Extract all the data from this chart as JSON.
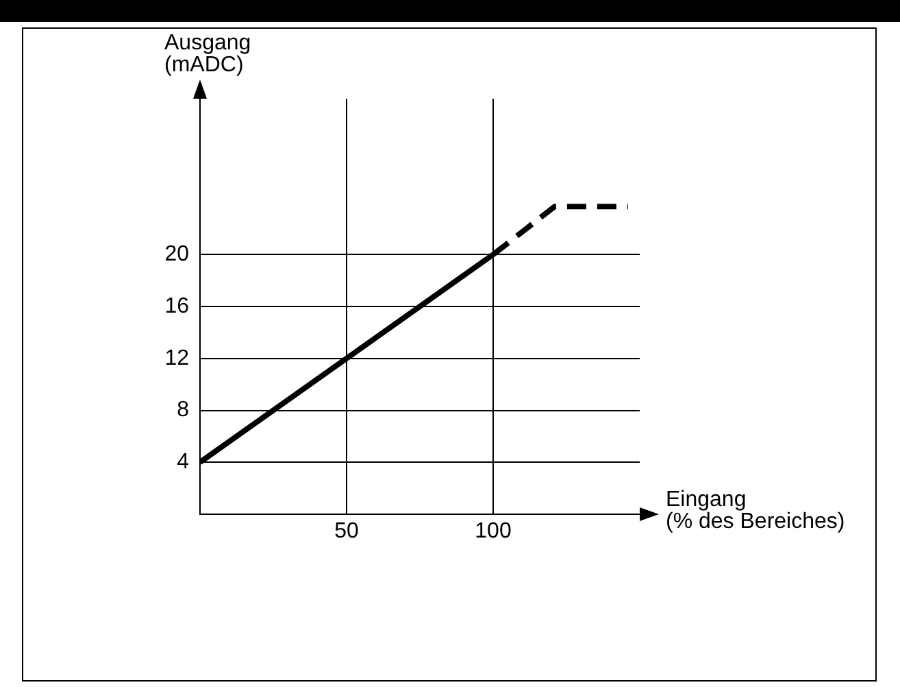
{
  "chart_data": {
    "type": "line",
    "xlabel": "Eingang\n(% des Bereiches)",
    "ylabel": "Ausgang\n(mADC)",
    "series": [
      {
        "x": [
          0,
          100
        ],
        "values": [
          4,
          20
        ],
        "color": "#000000",
        "line_style": "solid"
      },
      {
        "x": [
          100,
          121,
          146
        ],
        "values": [
          20,
          23.7,
          23.7
        ],
        "color": "#000000",
        "line_style": "dashed"
      }
    ],
    "xlim": [
      0,
      150
    ],
    "ylim": [
      0,
      32
    ],
    "xticks": [
      50,
      100
    ],
    "yticks": [
      4,
      8,
      12,
      16,
      20
    ],
    "grid": true,
    "legend": false,
    "marker": "none"
  }
}
